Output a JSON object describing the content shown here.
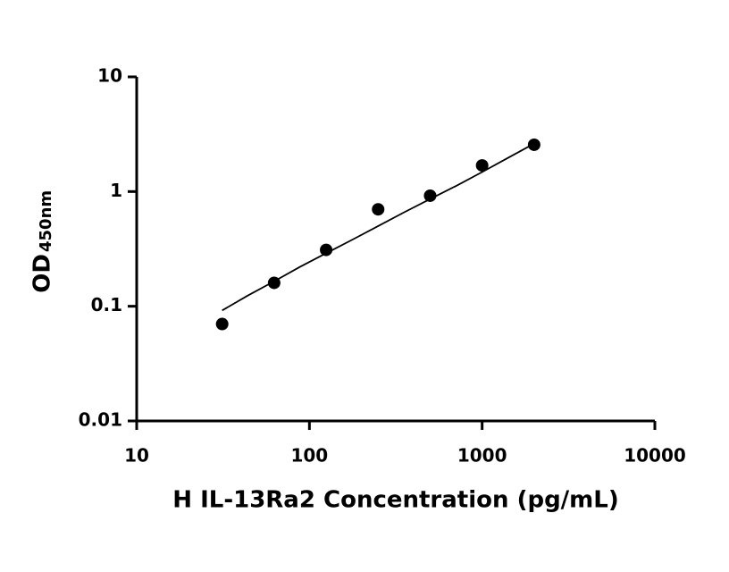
{
  "chart_data": {
    "type": "scatter",
    "xlabel": "H IL-13Ra2 Concentration (pg/mL)",
    "ylabel": "OD",
    "ylabel_sub": "450nm",
    "xscale": "log",
    "yscale": "log",
    "xlim": [
      10,
      10000
    ],
    "ylim": [
      0.01,
      10
    ],
    "xticks": [
      10,
      100,
      1000,
      10000
    ],
    "yticks": [
      0.01,
      0.1,
      1,
      10
    ],
    "series": [
      {
        "style": "markers",
        "color": "#000000",
        "x": [
          31.25,
          62.5,
          125,
          250,
          500,
          1000,
          2000
        ],
        "values": [
          0.07,
          0.16,
          0.31,
          0.7,
          0.92,
          1.69,
          2.56
        ]
      },
      {
        "style": "line",
        "color": "#000000",
        "x": [
          31.25,
          44,
          62.5,
          88,
          125,
          177,
          250,
          354,
          500,
          707,
          1000,
          1414,
          2000
        ],
        "values": [
          0.092,
          0.124,
          0.165,
          0.22,
          0.29,
          0.38,
          0.5,
          0.66,
          0.86,
          1.12,
          1.48,
          1.97,
          2.62
        ]
      }
    ]
  }
}
